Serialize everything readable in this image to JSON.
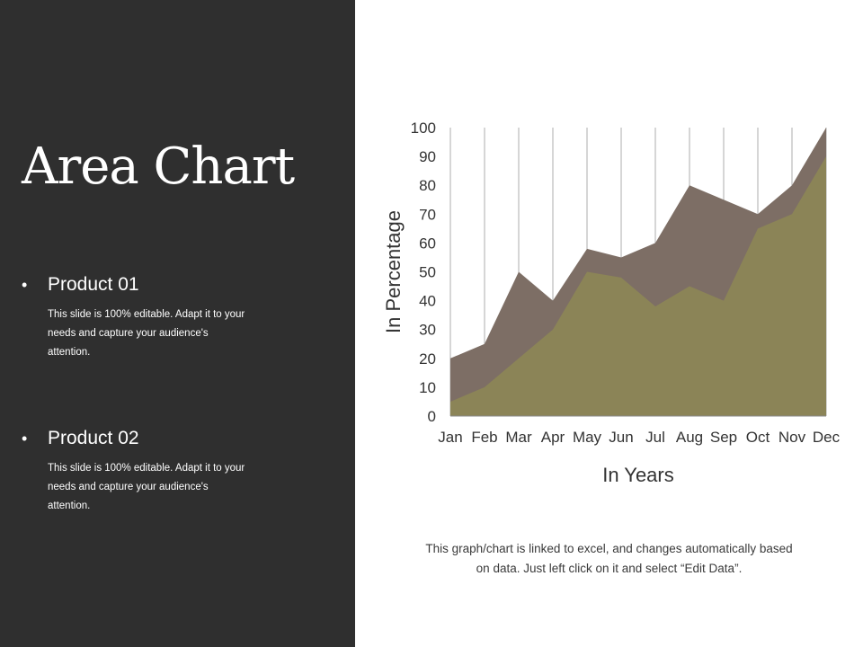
{
  "slide": {
    "title": "Area Chart",
    "products": [
      {
        "label": "Product 01",
        "description": "This slide is 100% editable. Adapt it to your needs and capture your audience's attention."
      },
      {
        "label": "Product 02",
        "description": "This slide is 100% editable. Adapt it to your needs and capture your audience's attention."
      }
    ],
    "footnote": "This graph/chart is linked to excel, and changes automatically based on data. Just left click on it and select “Edit Data”."
  },
  "colors": {
    "panel_background": "#2f2f2f",
    "series_1": "#7d6e65",
    "series_2": "#8b8457",
    "gridline": "#9a9a9a"
  },
  "chart_data": {
    "type": "area",
    "xlabel": "In Years",
    "ylabel": "In Percentage",
    "categories": [
      "Jan",
      "Feb",
      "Mar",
      "Apr",
      "May",
      "Jun",
      "Jul",
      "Aug",
      "Sep",
      "Oct",
      "Nov",
      "Dec"
    ],
    "ylim": [
      0,
      100
    ],
    "yticks": [
      0,
      10,
      20,
      30,
      40,
      50,
      60,
      70,
      80,
      90,
      100
    ],
    "grid": "vertical",
    "legend": "none",
    "series": [
      {
        "values": [
          20,
          25,
          50,
          40,
          58,
          55,
          60,
          80,
          75,
          70,
          80,
          100
        ]
      },
      {
        "values": [
          5,
          10,
          20,
          30,
          50,
          48,
          38,
          45,
          40,
          65,
          70,
          90
        ]
      }
    ]
  }
}
